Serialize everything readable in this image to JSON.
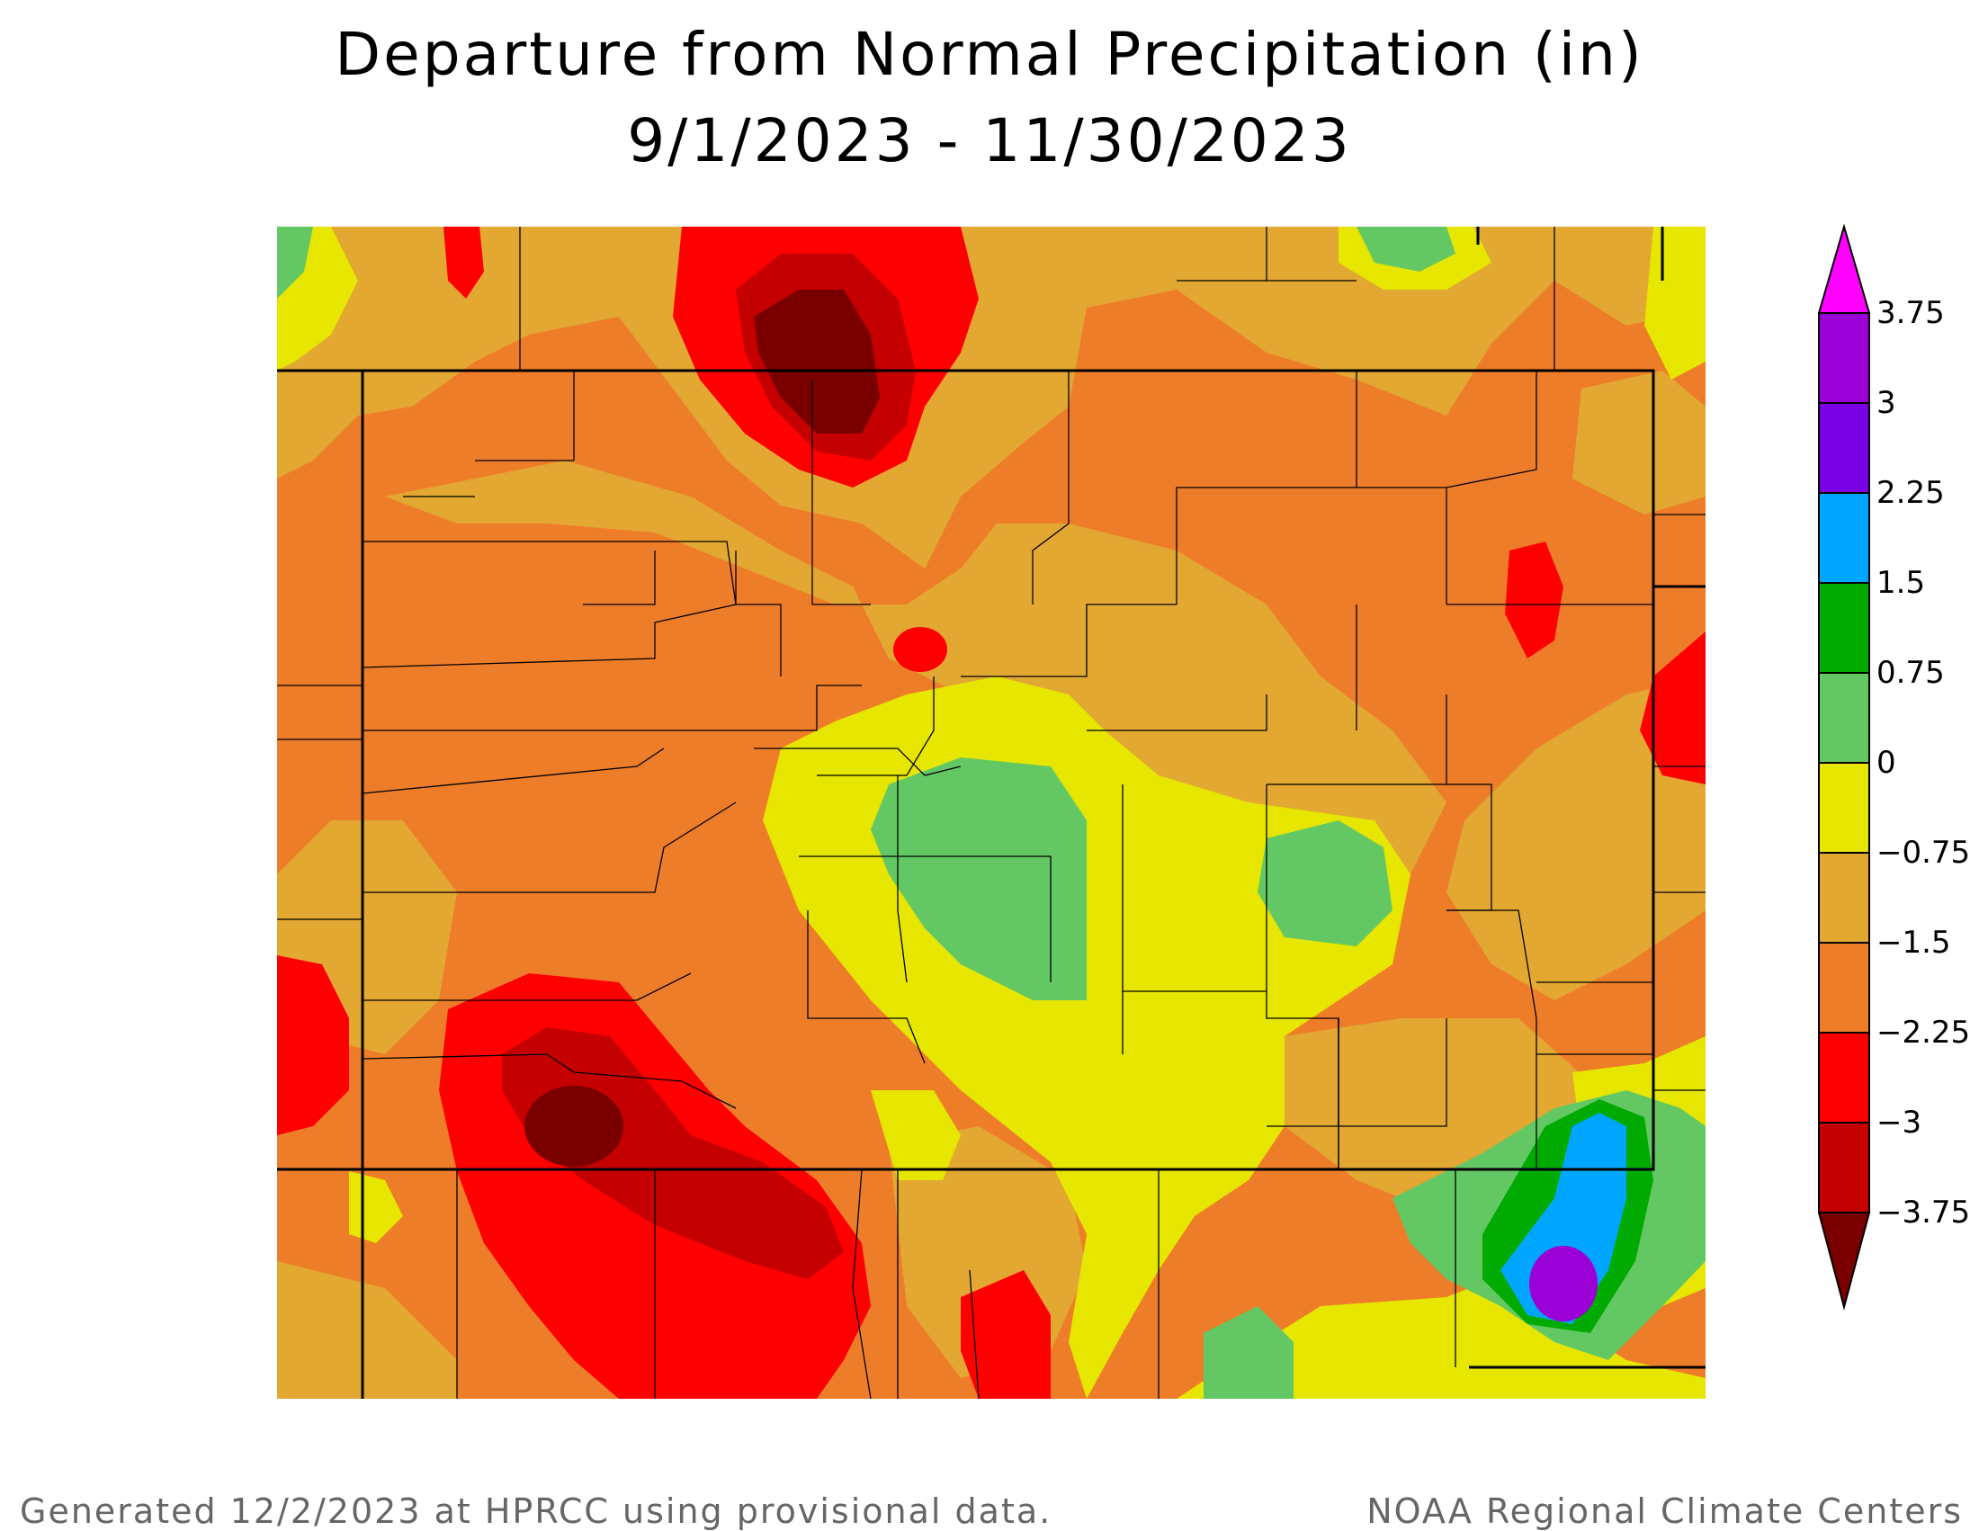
{
  "title": {
    "line1": "Departure from Normal Precipitation (in)",
    "line2": "9/1/2023 - 11/30/2023"
  },
  "legend": {
    "labels": [
      "3.75",
      "3",
      "2.25",
      "1.5",
      "0.75",
      "0",
      "−0.75",
      "−1.5",
      "−2.25",
      "−3",
      "−3.75"
    ],
    "colors": {
      "above_max": "#ff00ff",
      "3_to_3.75": "#9b00d6",
      "2.25_to_3": "#7a00e6",
      "1.5_to_2.25": "#00a6ff",
      "0.75_to_1.5": "#00aa00",
      "0_to_0.75": "#63c864",
      "neg0.75_to_0": "#e6e600",
      "neg1.5_to_neg0.75": "#e2a832",
      "neg2.25_to_neg1.5": "#ee7d2a",
      "neg3_to_neg2.25": "#ff0000",
      "neg3.75_to_neg3": "#c40000",
      "below_min": "#7a0000"
    }
  },
  "footer": {
    "left": "Generated 12/2/2023 at HPRCC using provisional data.",
    "right": "NOAA Regional Climate Centers"
  }
}
